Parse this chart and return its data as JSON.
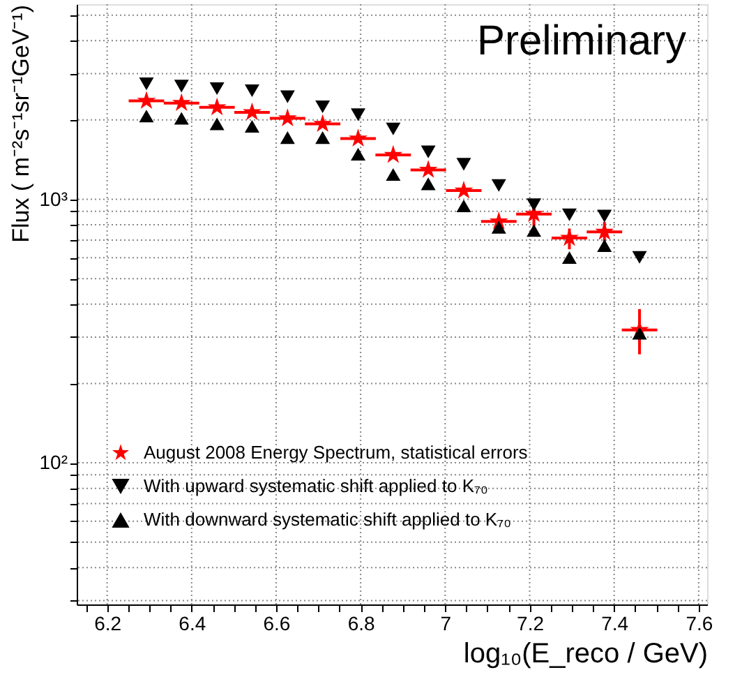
{
  "chart_data": {
    "type": "scatter",
    "xlabel": "log₁₀(E_reco / GeV)",
    "ylabel": "Flux ( m⁻²s⁻¹sr⁻¹GeV⁻¹)",
    "x": [
      6.293,
      6.376,
      6.46,
      6.543,
      6.627,
      6.71,
      6.794,
      6.877,
      6.96,
      7.044,
      7.127,
      7.21,
      7.294,
      7.377,
      7.46
    ],
    "xlim": [
      6.128,
      7.62
    ],
    "ylim": [
      29,
      5500
    ],
    "log": true,
    "grid": true,
    "legend": "bottom left",
    "annotations": [
      "Preliminary"
    ],
    "xticks": [
      {
        "value": 6.15,
        "label": null
      },
      6.2,
      {
        "value": 6.25,
        "label": null
      },
      {
        "value": 6.3,
        "label": null
      },
      {
        "value": 6.35,
        "label": null
      },
      6.4,
      {
        "value": 6.45,
        "label": null
      },
      {
        "value": 6.5,
        "label": null
      },
      {
        "value": 6.55,
        "label": null
      },
      6.6,
      {
        "value": 6.65,
        "label": null
      },
      {
        "value": 6.7,
        "label": null
      },
      {
        "value": 6.75,
        "label": null
      },
      6.8,
      {
        "value": 6.85,
        "label": null
      },
      {
        "value": 6.9,
        "label": null
      },
      {
        "value": 6.95,
        "label": null
      },
      7,
      {
        "value": 7.05,
        "label": null
      },
      {
        "value": 7.1,
        "label": null
      },
      {
        "value": 7.15,
        "label": null
      },
      7.2,
      {
        "value": 7.25,
        "label": null
      },
      {
        "value": 7.3,
        "label": null
      },
      {
        "value": 7.35,
        "label": null
      },
      7.4,
      {
        "value": 7.45,
        "label": null
      },
      {
        "value": 7.5,
        "label": null
      },
      {
        "value": 7.55,
        "label": null
      },
      7.6
    ],
    "yticks": [
      {
        "value": 30,
        "label": null
      },
      {
        "value": 40,
        "label": null
      },
      {
        "value": 50,
        "label": null
      },
      {
        "value": 60,
        "label": null
      },
      {
        "value": 70,
        "label": null
      },
      {
        "value": 80,
        "label": null
      },
      {
        "value": 90,
        "label": null
      },
      {
        "value": 100,
        "label": "10²"
      },
      {
        "value": 200,
        "label": null
      },
      {
        "value": 300,
        "label": null
      },
      {
        "value": 400,
        "label": null
      },
      {
        "value": 500,
        "label": null
      },
      {
        "value": 600,
        "label": null
      },
      {
        "value": 700,
        "label": null
      },
      {
        "value": 800,
        "label": null
      },
      {
        "value": 900,
        "label": null
      },
      {
        "value": 1000,
        "label": "10³"
      },
      {
        "value": 2000,
        "label": null
      },
      {
        "value": 3000,
        "label": null
      },
      {
        "value": 4000,
        "label": null
      },
      {
        "value": 5000,
        "label": null
      }
    ],
    "series": [
      {
        "name": "August 2008 Energy Spectrum, statistical errors",
        "color": "#ff0000",
        "marker": "star",
        "values": [
          2362,
          2318,
          2233,
          2138,
          2029,
          1932,
          1700,
          1473,
          1293,
          1079,
          824,
          879,
          713,
          752,
          319
        ],
        "errors": [
          null,
          null,
          null,
          null,
          null,
          null,
          null,
          null,
          null,
          null,
          null,
          [
            790,
            975
          ],
          [
            646,
            774
          ],
          [
            690,
            820
          ],
          [
            258,
            383
          ]
        ],
        "xerrors": [
          0.042,
          0.042,
          0.042,
          0.042,
          0.042,
          0.042,
          0.042,
          0.042,
          0.042,
          0.042,
          0.042,
          0.042,
          0.042,
          0.042,
          0.042
        ]
      },
      {
        "name": "With upward systematic shift applied to K₇₀",
        "color": "#000000",
        "marker": "triangle-down",
        "values": [
          2742,
          2688,
          2630,
          2582,
          2449,
          2244,
          2094,
          1849,
          1513,
          1357,
          1128,
          953,
          873,
          863,
          602
        ]
      },
      {
        "name": "With downward systematic shift applied to K₇₀",
        "color": "#000000",
        "marker": "triangle-up",
        "values": [
          2070,
          2029,
          1932,
          1892,
          1714,
          1714,
          1483,
          1242,
          1145,
          944,
          783,
          761,
          601,
          667,
          310
        ]
      }
    ]
  }
}
